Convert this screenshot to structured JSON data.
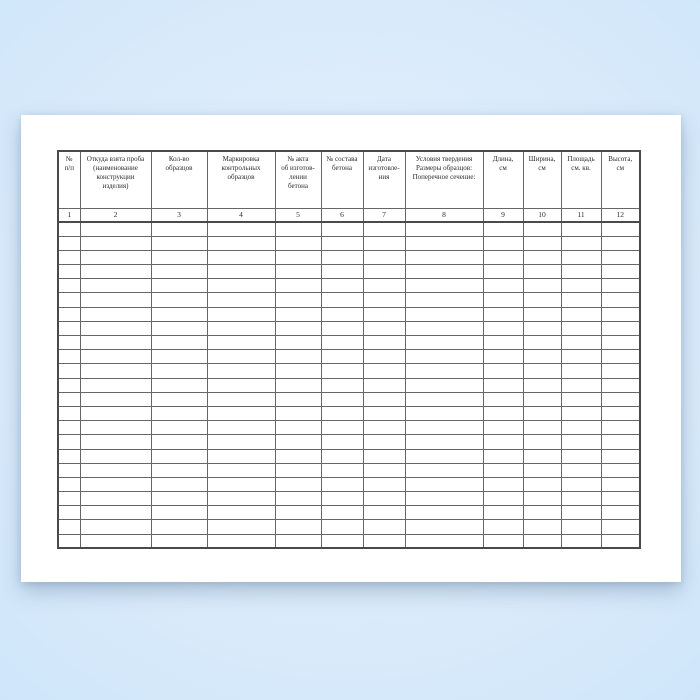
{
  "table": {
    "columns": [
      {
        "num": "1",
        "header": "№\nп/п"
      },
      {
        "num": "2",
        "header": "Откуда взята проба\n(наименование\nконструкции\nизделия)"
      },
      {
        "num": "3",
        "header": "Кол-во\nобразцов"
      },
      {
        "num": "4",
        "header": "Маркировка\nконтрольных\nобразцов"
      },
      {
        "num": "5",
        "header": "№ акта\nоб изготов-\nлении\nбетона"
      },
      {
        "num": "6",
        "header": "№ состава\nбетона"
      },
      {
        "num": "7",
        "header": "Дата\nизготовле-\nния"
      },
      {
        "num": "8",
        "header": "Условия твердения\nРазмеры образцов:\nПоперечное сечение:"
      },
      {
        "num": "9",
        "header": "Длина,\nсм"
      },
      {
        "num": "10",
        "header": "Ширина,\nсм"
      },
      {
        "num": "11",
        "header": "Площадь\nсм. кв."
      },
      {
        "num": "12",
        "header": "Высота,\nсм"
      }
    ],
    "empty_row_count": 23,
    "cell_values": ""
  },
  "colors": {
    "page": "#ffffff",
    "grid": "#666666",
    "outer_border": "#4a4a4a",
    "text": "#2b2b2b",
    "background_outer": "#cfe6fa",
    "background_inner": "#ecf5fe"
  }
}
